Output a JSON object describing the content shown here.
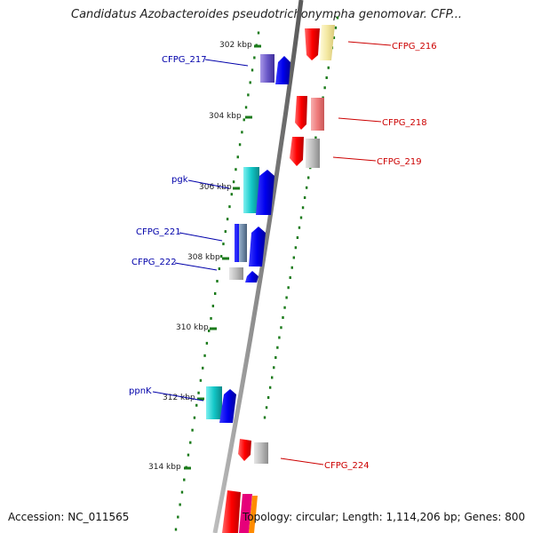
{
  "map": {
    "title": "Candidatus Azobacteroides pseudotrichonympha genomovar. CFP...",
    "accession": "Accession: NC_011565",
    "topology": "Topology: circular; Length: 1,114,206 bp; Genes: 800"
  },
  "ticks": [
    {
      "label": "302 kbp"
    },
    {
      "label": "304 kbp"
    },
    {
      "label": "306 kbp"
    },
    {
      "label": "308 kbp"
    },
    {
      "label": "310 kbp"
    },
    {
      "label": "312 kbp"
    },
    {
      "label": "314 kbp"
    }
  ],
  "genes": {
    "forward": [
      {
        "label": "CFPG_217"
      },
      {
        "label": "pgk"
      },
      {
        "label": "CFPG_221"
      },
      {
        "label": "CFPG_222"
      },
      {
        "label": "ppnK"
      }
    ],
    "reverse": [
      {
        "label": "CFPG_216"
      },
      {
        "label": "CFPG_218"
      },
      {
        "label": "CFPG_219"
      },
      {
        "label": "CFPG_224"
      }
    ]
  },
  "colors": {
    "forward_label": "#0000aa",
    "reverse_label": "#cc0000",
    "dots": "#1a7a1a",
    "backbone": "#888888"
  }
}
